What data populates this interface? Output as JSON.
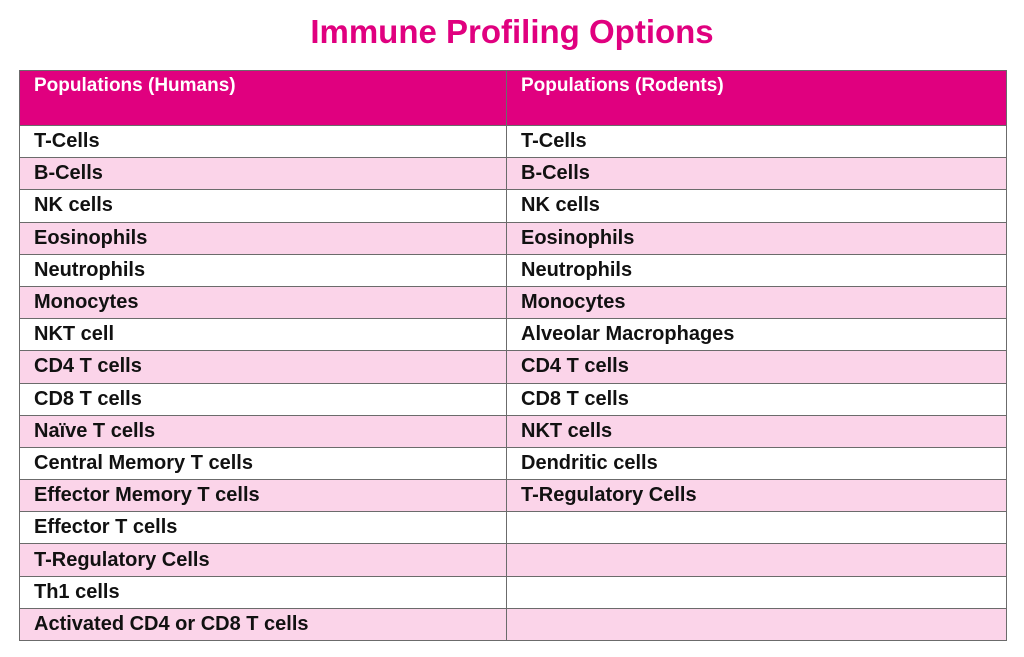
{
  "title": "Immune Profiling Options",
  "colors": {
    "accent": "#e0007f",
    "header_text": "#ffffff",
    "stripe": "#fbd4e9",
    "row_base": "#ffffff",
    "border": "#6b6b6b"
  },
  "table": {
    "headers": [
      "Populations (Humans)",
      "Populations (Rodents)"
    ],
    "rows": [
      [
        "T-Cells",
        "T-Cells"
      ],
      [
        "B-Cells",
        "B-Cells"
      ],
      [
        "NK cells",
        "NK cells"
      ],
      [
        "Eosinophils",
        "Eosinophils"
      ],
      [
        "Neutrophils",
        "Neutrophils"
      ],
      [
        "Monocytes",
        "Monocytes"
      ],
      [
        "NKT cell",
        "Alveolar Macrophages"
      ],
      [
        "CD4 T cells",
        "CD4 T cells"
      ],
      [
        "CD8 T cells",
        "CD8 T cells"
      ],
      [
        "Naïve T cells",
        "NKT cells"
      ],
      [
        "Central Memory T cells",
        "Dendritic cells"
      ],
      [
        "Effector Memory  T cells",
        "T-Regulatory Cells"
      ],
      [
        "Effector T cells",
        ""
      ],
      [
        "T-Regulatory Cells",
        ""
      ],
      [
        "Th1 cells",
        ""
      ],
      [
        "Activated CD4 or CD8 T cells",
        ""
      ]
    ]
  }
}
